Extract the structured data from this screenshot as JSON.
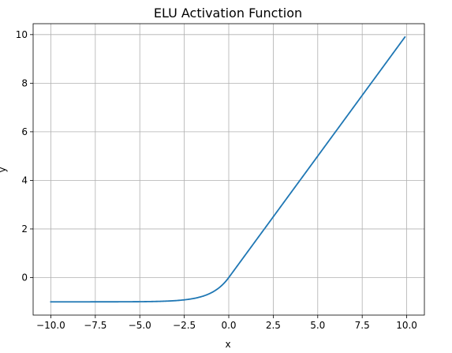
{
  "chart_data": {
    "type": "line",
    "title": "ELU Activation Function",
    "xlabel": "x",
    "ylabel": "y",
    "xlim": [
      -10.9945,
      10.9945
    ],
    "ylim": [
      -1.5452,
      10.4494
    ],
    "grid": true,
    "colors": {
      "line": "#1f77b4",
      "grid": "#b0b0b0",
      "axes": "#000000"
    },
    "x_ticks": [
      -10.0,
      -7.5,
      -5.0,
      -2.5,
      0.0,
      2.5,
      5.0,
      7.5,
      10.0
    ],
    "x_tick_labels": [
      "−10.0",
      "−7.5",
      "−5.0",
      "−2.5",
      "0.0",
      "2.5",
      "5.0",
      "7.5",
      "10.0"
    ],
    "y_ticks": [
      0,
      2,
      4,
      6,
      8,
      10
    ],
    "y_tick_labels": [
      "0",
      "2",
      "4",
      "6",
      "8",
      "10"
    ],
    "series": [
      {
        "function": "elu",
        "alpha": 1.0,
        "x_range": [
          -10.0,
          9.9
        ],
        "sample_x": [
          -10.0,
          -7.5,
          -5.0,
          -2.5,
          -2.0,
          -1.5,
          -1.0,
          -0.5,
          0.0,
          2.5,
          5.0,
          7.5,
          9.9
        ],
        "sample_y": [
          -1.0,
          -0.999,
          -0.993,
          -0.918,
          -0.865,
          -0.777,
          -0.632,
          -0.393,
          0.0,
          2.5,
          5.0,
          7.5,
          9.9
        ]
      }
    ]
  }
}
